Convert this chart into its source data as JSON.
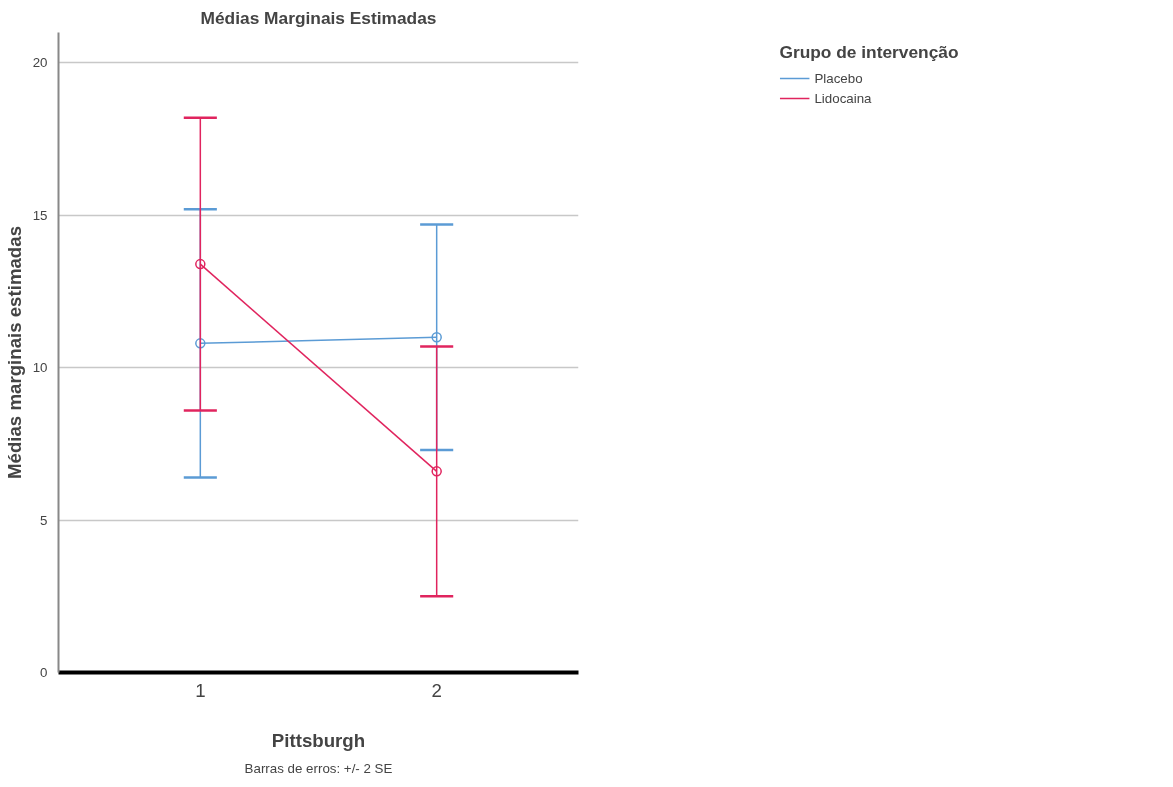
{
  "chart_data": {
    "type": "line",
    "title": "Médias Marginais Estimadas",
    "xlabel": "Pittsburgh",
    "ylabel": "Médias marginais estimadas",
    "legend_title": "Grupo de intervenção",
    "categories": [
      "1",
      "2"
    ],
    "series": [
      {
        "name": "Placebo",
        "color": "#5b9bd5",
        "values": [
          10.8,
          11.0
        ],
        "errors": [
          [
            6.4,
            15.2
          ],
          [
            7.3,
            14.7
          ]
        ]
      },
      {
        "name": "Lidocaina",
        "color": "#e0245e",
        "values": [
          13.4,
          6.6
        ],
        "errors": [
          [
            8.6,
            18.2
          ],
          [
            2.5,
            10.7
          ]
        ]
      }
    ],
    "ylim": [
      0,
      21
    ],
    "yticks": [
      0,
      5,
      10,
      15,
      20
    ],
    "grid": "y",
    "legend": "top right",
    "marker": "circle",
    "line_style": "solid",
    "annotations": [
      "Barras de erros: +/- 2 SE"
    ]
  }
}
